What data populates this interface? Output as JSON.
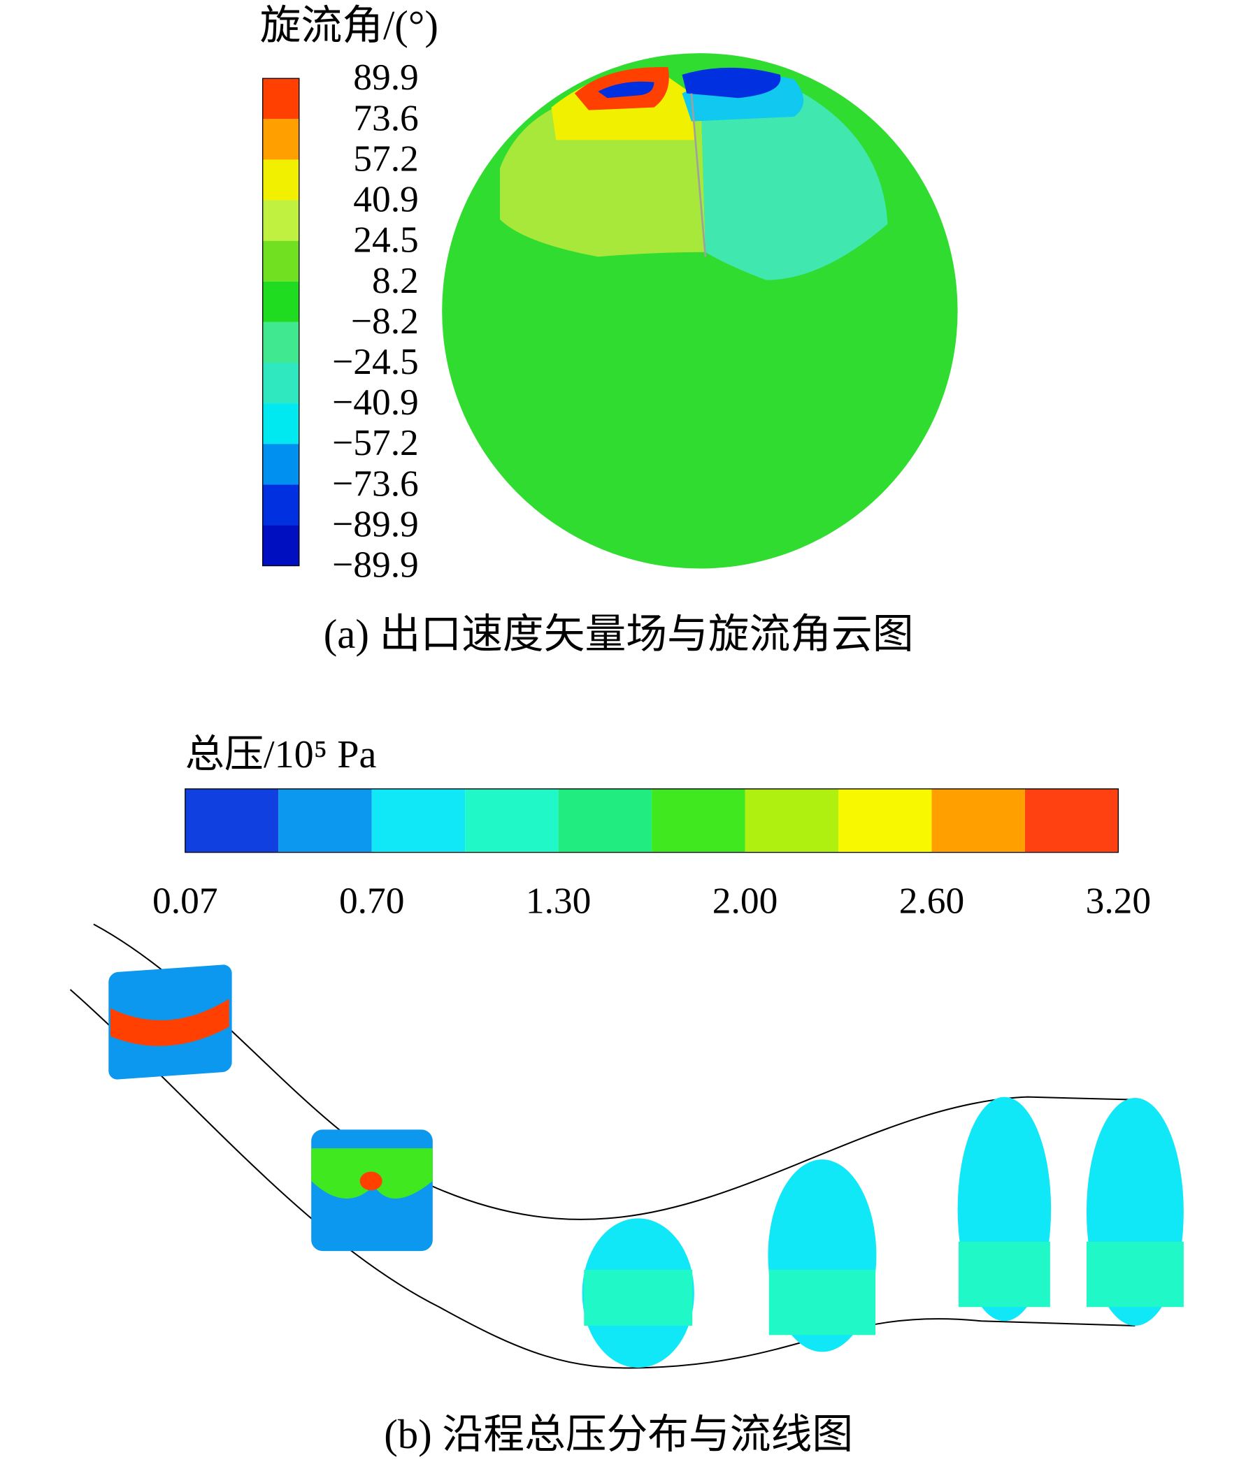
{
  "panel_a": {
    "legend_title": "旋流角/(°)",
    "legend_labels": [
      "89.9",
      "73.6",
      "57.2",
      "40.9",
      "24.5",
      "8.2",
      "−8.2",
      "−24.5",
      "−40.9",
      "−57.2",
      "−73.6",
      "−89.9"
    ],
    "legend_colors": [
      "#ff4000",
      "#ffa000",
      "#f0f000",
      "#c0f040",
      "#70e020",
      "#20dc20",
      "#40e890",
      "#30e8c0",
      "#00e8f0",
      "#0090f0",
      "#0030e0",
      "#0010c0"
    ],
    "last_label": "−89.9",
    "caption": "(a) 出口速度矢量场与旋流角云图"
  },
  "panel_b": {
    "legend_title": "总压/10⁵ Pa",
    "legend_colors": [
      "#1040e0",
      "#0c98ee",
      "#10e8f8",
      "#20f8c8",
      "#20ec80",
      "#40e820",
      "#b0f010",
      "#f8f800",
      "#ffa000",
      "#ff4010"
    ],
    "tick_labels": [
      "0.07",
      "0.70",
      "1.30",
      "2.00",
      "2.60",
      "3.20"
    ],
    "caption": "(b) 沿程总压分布与流线图"
  }
}
